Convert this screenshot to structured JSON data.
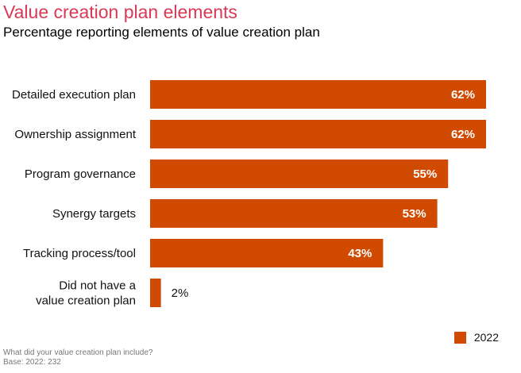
{
  "chart_data": {
    "type": "bar",
    "orientation": "horizontal",
    "title": "Value creation plan elements",
    "subtitle": "Percentage reporting elements of value creation plan",
    "categories": [
      "Detailed execution plan",
      "Ownership assignment",
      "Program governance",
      "Synergy targets",
      "Tracking process/tool",
      "Did not have a value creation plan"
    ],
    "category_lines": [
      [
        "Detailed execution plan"
      ],
      [
        "Ownership assignment"
      ],
      [
        "Program governance"
      ],
      [
        "Synergy targets"
      ],
      [
        "Tracking process/tool"
      ],
      [
        "Did not have a",
        "value creation plan"
      ]
    ],
    "series": [
      {
        "name": "2022",
        "values": [
          62,
          62,
          55,
          53,
          43,
          2
        ],
        "labels": [
          "62%",
          "62%",
          "55%",
          "53%",
          "43%",
          "2%"
        ],
        "color": "#d04a02"
      }
    ],
    "xlim": [
      0,
      62
    ],
    "grid": false,
    "legend_position": "bottom-right"
  },
  "footnote": {
    "question": "What did your value creation plan include?",
    "base": "Base: 2022: 232"
  },
  "colors": {
    "title": "#d93954",
    "bar": "#d04a02"
  }
}
